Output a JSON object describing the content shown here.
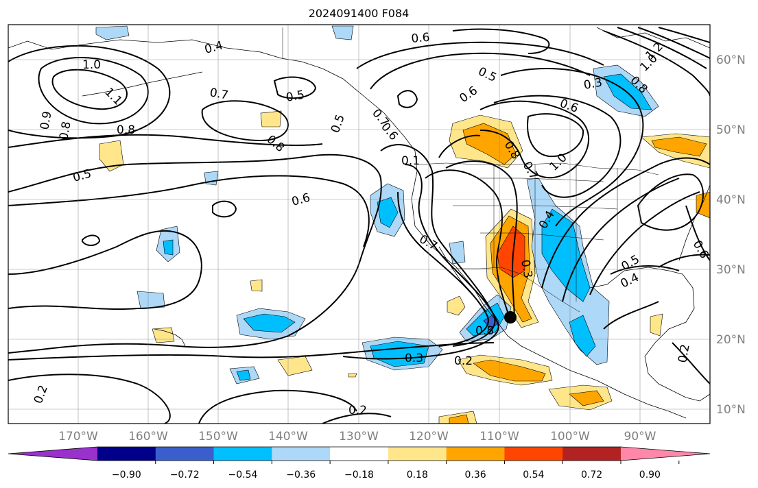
{
  "title": "2024091400 F084",
  "lat_labels": [
    "60°N",
    "50°N",
    "40°N",
    "30°N",
    "20°N",
    "10°N"
  ],
  "lon_labels": [
    "170°W",
    "160°W",
    "150°W",
    "140°W",
    "130°W",
    "120°W",
    "110°W",
    "100°W",
    "90°W"
  ],
  "contour_labels": [
    "1.0",
    "1.1",
    "0.9",
    "0.8",
    "0.8",
    "0.5",
    "0.4",
    "0.7",
    "0.5",
    "0.8",
    "0.6",
    "0.5",
    "0.6",
    "0.5",
    "0.6",
    "0.3",
    "0.6",
    "1.2",
    "1.0",
    "0.8",
    "0.7",
    "0.6",
    "0.1",
    "0.7",
    "0.8",
    "0.7",
    "1.0",
    "0.4",
    "0.3",
    "0.8",
    "0.3",
    "0.2",
    "0.2",
    "0.2",
    "0.5",
    "0.4",
    "0.2",
    "0.6"
  ],
  "colorbar": {
    "ticks": [
      "−0.90",
      "−0.72",
      "−0.54",
      "−0.36",
      "−0.18",
      "0.18",
      "0.36",
      "0.54",
      "0.72",
      "0.90"
    ],
    "colors": [
      "#9932cc",
      "#00008b",
      "#3a5fcd",
      "#00bfff",
      "#add8f7",
      "#ffffff",
      "#ffe68a",
      "#ffa500",
      "#ff4500",
      "#b22222",
      "#ff88aa"
    ]
  },
  "markers": [
    {
      "name": "storm-center",
      "lon": "108°W",
      "lat": "23°N"
    }
  ]
}
